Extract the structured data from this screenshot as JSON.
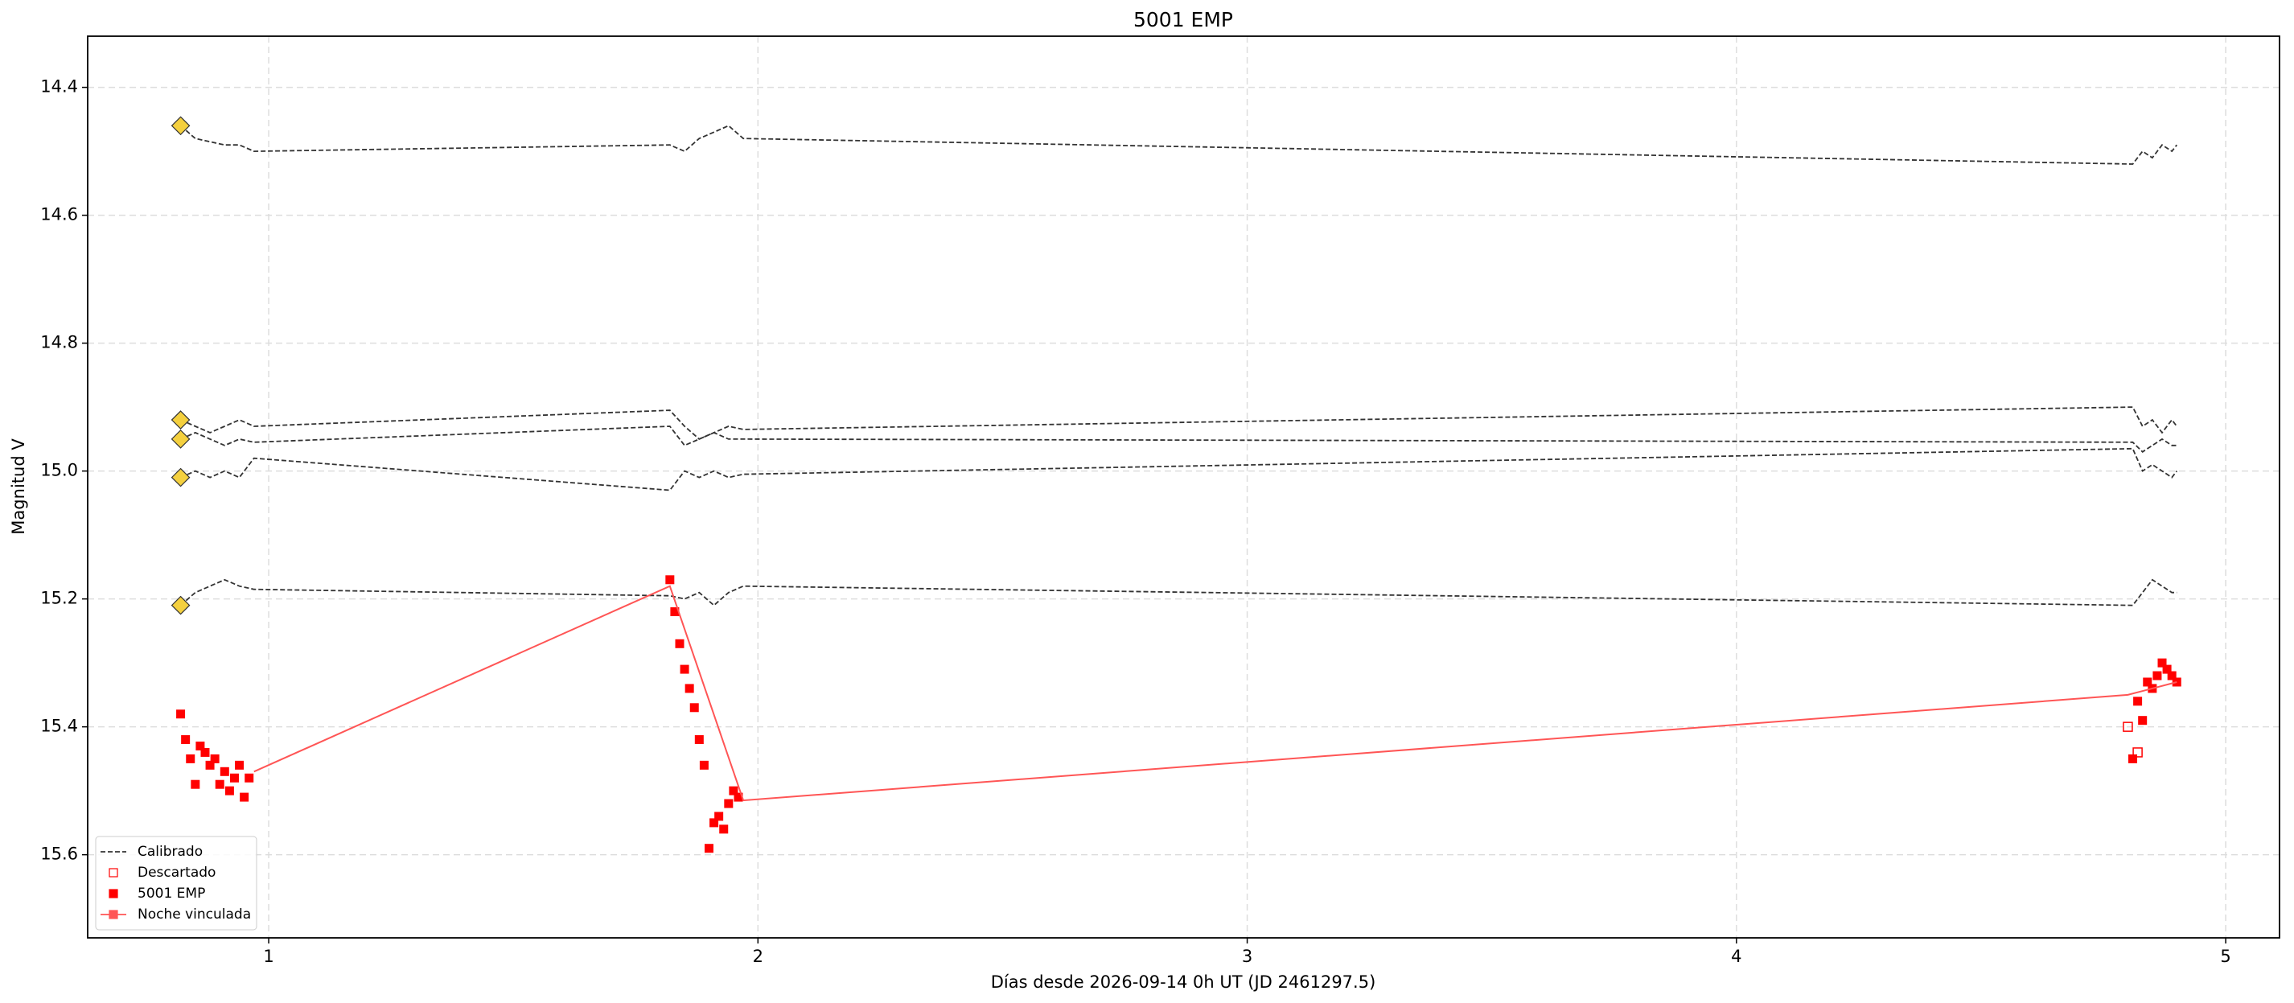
{
  "chart_data": {
    "type": "line",
    "title": "5001 EMP",
    "xlabel": "Días desde 2026-09-14 0h UT (JD 2461297.5)",
    "ylabel": "Magnitud V",
    "xlim": [
      0.63,
      5.11
    ],
    "ylim": [
      14.32,
      15.73
    ],
    "y_inverted": true,
    "xticks": [
      1,
      2,
      3,
      4,
      5
    ],
    "yticks": [
      14.4,
      14.6,
      14.8,
      {
        "value": 15,
        "label": "15.0"
      },
      15.2,
      15.4,
      15.6
    ],
    "grid": true,
    "legend": "lower left",
    "series": [
      {
        "name": "Calibrado",
        "style": "dashed-line",
        "color": "#333333",
        "first_point_marker_color": "#f4d03f",
        "x": [
          0.82,
          0.85,
          0.88,
          0.91,
          0.94,
          0.97,
          1.82,
          1.85,
          1.88,
          1.91,
          1.94,
          1.97,
          4.81,
          4.83,
          4.85,
          4.87,
          4.89,
          4.9
        ],
        "values": [
          [
            14.46,
            14.48,
            14.485,
            14.49,
            14.49,
            14.5,
            14.49,
            14.5,
            14.48,
            14.47,
            14.46,
            14.48,
            14.52,
            14.5,
            14.51,
            14.49,
            14.5,
            14.49
          ],
          [
            14.92,
            14.93,
            14.94,
            14.93,
            14.92,
            14.93,
            14.905,
            14.93,
            14.95,
            14.94,
            14.93,
            14.935,
            14.9,
            14.93,
            14.92,
            14.94,
            14.92,
            14.93
          ],
          [
            14.95,
            14.94,
            14.95,
            14.96,
            14.95,
            14.955,
            14.93,
            14.96,
            14.95,
            14.94,
            14.95,
            14.95,
            14.955,
            14.97,
            14.96,
            14.95,
            14.96,
            14.96
          ],
          [
            15.01,
            15.0,
            15.01,
            15.0,
            15.01,
            14.98,
            15.03,
            15.0,
            15.01,
            15.0,
            15.01,
            15.005,
            14.965,
            15.0,
            14.99,
            15.0,
            15.01,
            15.0
          ],
          [
            15.21,
            15.19,
            15.18,
            15.17,
            15.18,
            15.185,
            15.195,
            15.2,
            15.19,
            15.21,
            15.19,
            15.18,
            15.21,
            15.19,
            15.17,
            15.18,
            15.19,
            15.19
          ]
        ]
      },
      {
        "name": "Descartado",
        "style": "open-square",
        "color": "#ff0000",
        "x": [
          4.8,
          4.82
        ],
        "values": [
          15.4,
          15.44
        ]
      },
      {
        "name": "5001 EMP",
        "style": "square",
        "color": "#ff0000",
        "x": [
          0.82,
          0.83,
          0.84,
          0.85,
          0.86,
          0.87,
          0.88,
          0.89,
          0.9,
          0.91,
          0.92,
          0.93,
          0.94,
          0.95,
          0.96,
          1.82,
          1.83,
          1.84,
          1.85,
          1.86,
          1.87,
          1.88,
          1.89,
          1.9,
          1.91,
          1.92,
          1.93,
          1.94,
          1.95,
          1.96,
          4.81,
          4.82,
          4.83,
          4.84,
          4.85,
          4.86,
          4.87,
          4.88,
          4.89,
          4.9
        ],
        "values": [
          15.38,
          15.42,
          15.45,
          15.49,
          15.43,
          15.44,
          15.46,
          15.45,
          15.49,
          15.47,
          15.5,
          15.48,
          15.46,
          15.51,
          15.48,
          15.17,
          15.22,
          15.27,
          15.31,
          15.34,
          15.37,
          15.42,
          15.46,
          15.59,
          15.55,
          15.54,
          15.56,
          15.52,
          15.5,
          15.51,
          15.45,
          15.36,
          15.39,
          15.33,
          15.34,
          15.32,
          15.3,
          15.31,
          15.32,
          15.33
        ]
      },
      {
        "name": "Noche vinculada",
        "style": "line",
        "color": "#ff5555",
        "x": [
          0.97,
          1.82,
          1.97,
          4.8,
          4.9
        ],
        "values": [
          15.47,
          15.18,
          15.515,
          15.35,
          15.33
        ]
      }
    ]
  }
}
